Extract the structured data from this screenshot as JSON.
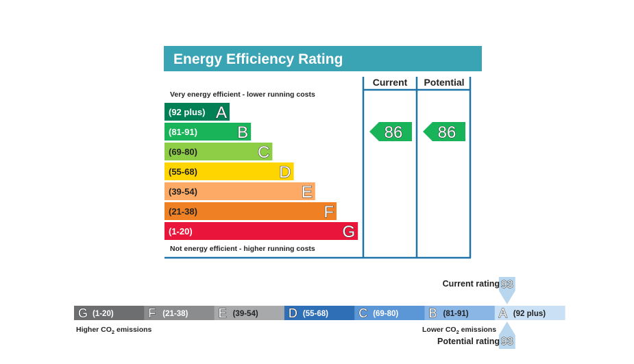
{
  "chart_data": [
    {
      "type": "bar",
      "title": "Energy Efficiency Rating",
      "column_headers": [
        "Current",
        "Potential"
      ],
      "top_note": "Very energy efficient - lower running costs",
      "bottom_note": "Not energy efficient - higher running costs",
      "bands": [
        {
          "letter": "A",
          "range": "(92 plus)",
          "color": "#008054",
          "text_color": "#ffffff"
        },
        {
          "letter": "B",
          "range": "(81-91)",
          "color": "#19b459",
          "text_color": "#ffffff"
        },
        {
          "letter": "C",
          "range": "(69-80)",
          "color": "#8dce46",
          "text_color": "#222222"
        },
        {
          "letter": "D",
          "range": "(55-68)",
          "color": "#ffd500",
          "text_color": "#222222"
        },
        {
          "letter": "E",
          "range": "(39-54)",
          "color": "#fcaa65",
          "text_color": "#222222"
        },
        {
          "letter": "F",
          "range": "(21-38)",
          "color": "#ef8023",
          "text_color": "#222222"
        },
        {
          "letter": "G",
          "range": "(1-20)",
          "color": "#e9153b",
          "text_color": "#ffffff"
        }
      ],
      "current": {
        "value": 86,
        "band": "B"
      },
      "potential": {
        "value": 86,
        "band": "B"
      },
      "header_color": "#3aa3b4",
      "frame_color": "#1e73a8"
    },
    {
      "type": "bar",
      "title": "",
      "bands": [
        {
          "letter": "G",
          "range": "(1-20)",
          "color": "#6d6e70",
          "text_color": "#ffffff"
        },
        {
          "letter": "F",
          "range": "(21-38)",
          "color": "#8b8c8e",
          "text_color": "#ffffff"
        },
        {
          "letter": "E",
          "range": "(39-54)",
          "color": "#a7a9ab",
          "text_color": "#222222"
        },
        {
          "letter": "D",
          "range": "(55-68)",
          "color": "#2f6fb6",
          "text_color": "#ffffff"
        },
        {
          "letter": "C",
          "range": "(69-80)",
          "color": "#5b96d6",
          "text_color": "#ffffff"
        },
        {
          "letter": "B",
          "range": "(81-91)",
          "color": "#8ab6e6",
          "text_color": "#222222"
        },
        {
          "letter": "A",
          "range": "(92 plus)",
          "color": "#c9e0f5",
          "text_color": "#222222"
        }
      ],
      "left_label": "Higher CO2 emissions",
      "right_label": "Lower CO2 emissions",
      "current_rating_label": "Current rating",
      "potential_rating_label": "Potential rating",
      "current": {
        "value": 93,
        "band": "A"
      },
      "potential": {
        "value": 93,
        "band": "A"
      },
      "marker_color": "#b8d7ef"
    }
  ]
}
